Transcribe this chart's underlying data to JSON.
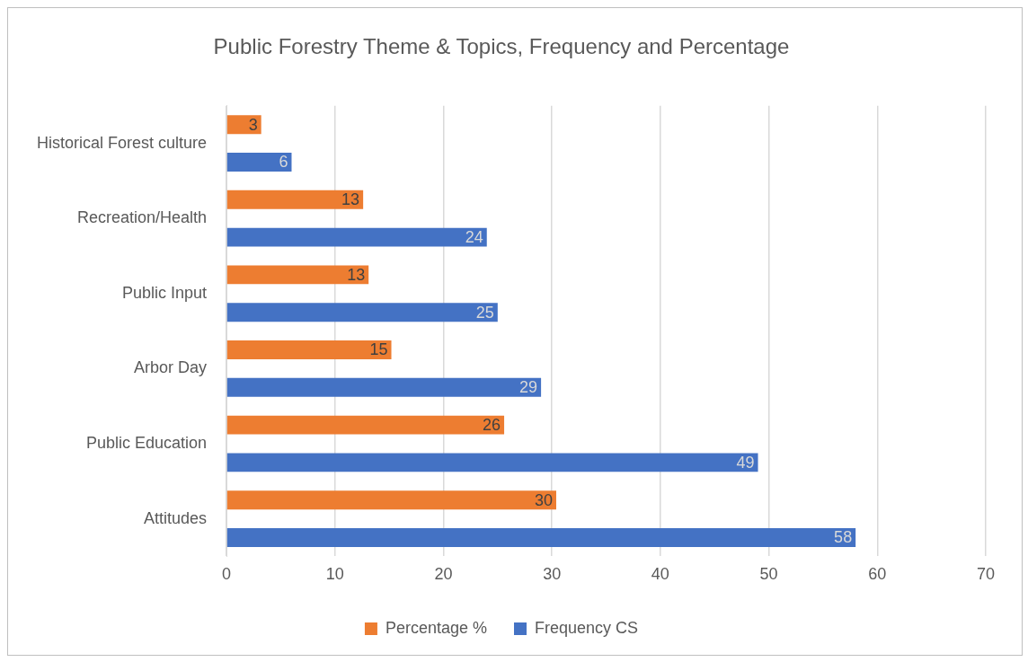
{
  "chart_data": {
    "type": "bar",
    "orientation": "horizontal",
    "title": "Public Forestry Theme & Topics, Frequency and Percentage",
    "categories": [
      "Historical Forest culture",
      "Recreation/Health",
      "Public Input",
      "Arbor Day",
      "Public Education",
      "Attitudes"
    ],
    "series": [
      {
        "name": "Percentage %",
        "color": "#ed7d31",
        "values": [
          3.2,
          12.6,
          13.1,
          15.2,
          25.6,
          30.4
        ],
        "value_labels": [
          "3",
          "13",
          "13",
          "15",
          "26",
          "30"
        ]
      },
      {
        "name": "Frequency CS",
        "color": "#4472c4",
        "values": [
          6,
          24,
          25,
          29,
          49,
          58
        ],
        "value_labels": [
          "6",
          "24",
          "25",
          "29",
          "49",
          "58"
        ]
      }
    ],
    "xlim": [
      0,
      70
    ],
    "xticks": [
      0,
      10,
      20,
      30,
      40,
      50,
      60,
      70
    ],
    "grid": "x",
    "legend": "bottom"
  }
}
